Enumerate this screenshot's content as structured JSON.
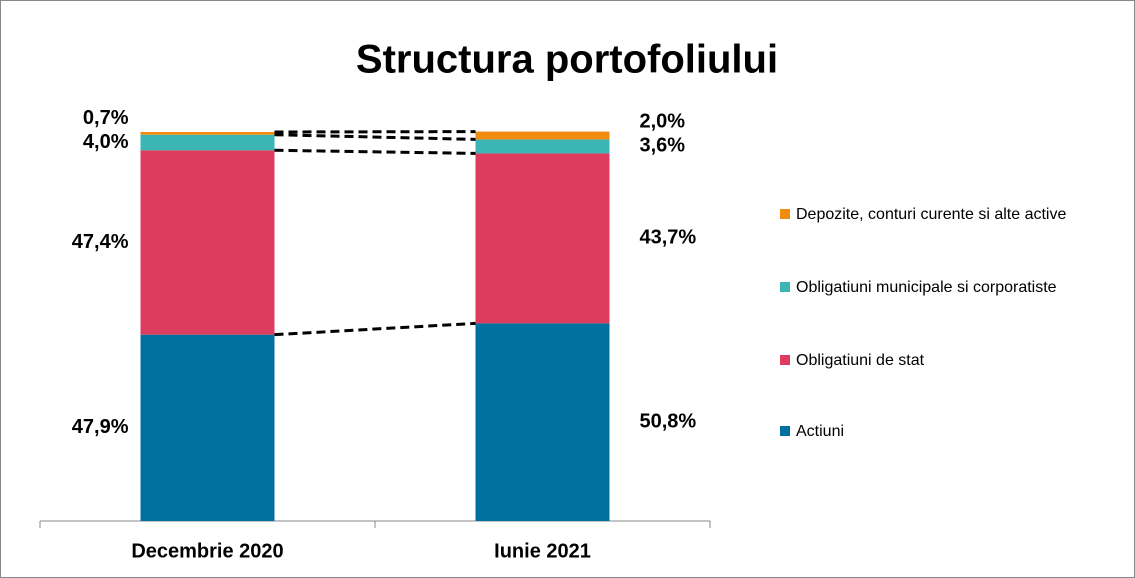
{
  "chart_data": {
    "type": "stacked_bar",
    "title": "Structura portofoliului",
    "categories": [
      "Decembrie 2020",
      "Iunie 2021"
    ],
    "ylim": [
      0,
      100
    ],
    "series": [
      {
        "name": "Actiuni",
        "color": "#0070a0",
        "values": [
          47.9,
          50.8
        ],
        "value_labels": [
          "47,9%",
          "50,8%"
        ]
      },
      {
        "name": "Obligatiuni de stat",
        "color": "#dd3c5e",
        "values": [
          47.4,
          43.7
        ],
        "value_labels": [
          "47,4%",
          "43,7%"
        ]
      },
      {
        "name": "Obligatiuni municipale si corporatiste",
        "color": "#3cb5b5",
        "values": [
          4.0,
          3.6
        ],
        "value_labels": [
          "4,0%",
          "3,6%"
        ]
      },
      {
        "name": "Depozite, conturi curente si alte active",
        "color": "#f28c10",
        "values": [
          0.7,
          2.0
        ],
        "value_labels": [
          "0,7%",
          "2,0%"
        ]
      }
    ]
  }
}
